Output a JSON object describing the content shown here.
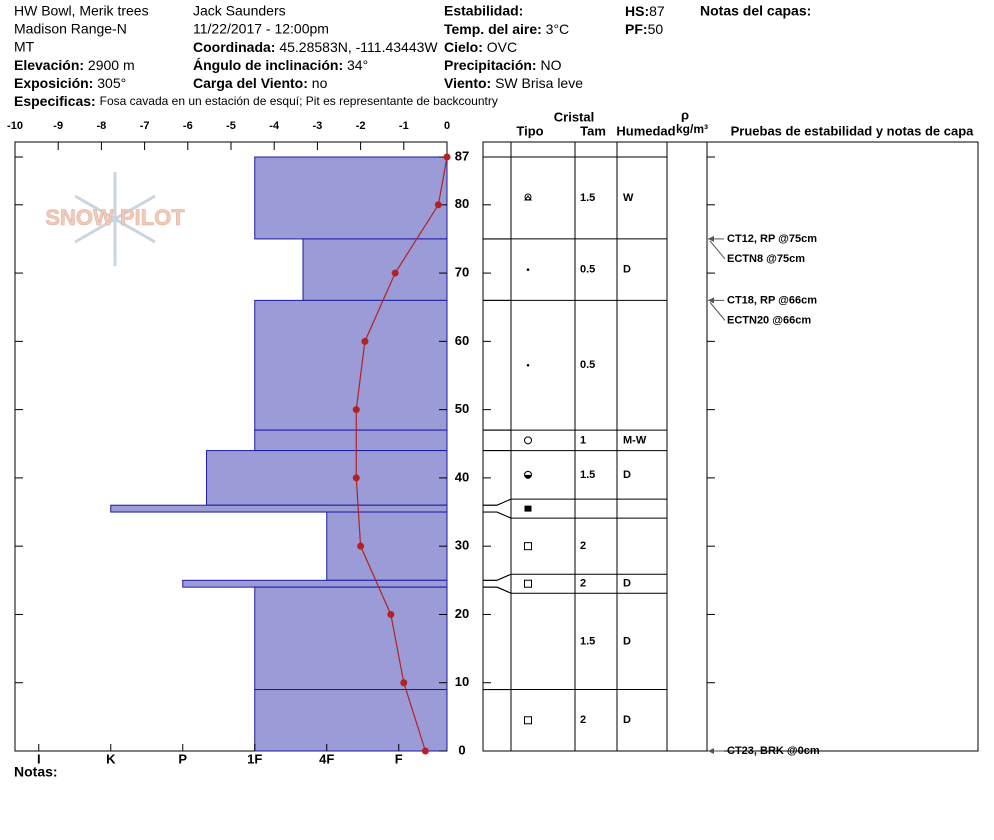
{
  "header": {
    "location": "HW Bowl, Merik trees",
    "range": "Madison Range-N",
    "state": "MT",
    "elevation_label": "Elevación:",
    "elevation": "2900 m",
    "aspect_label": "Exposición:",
    "aspect": "305°",
    "observer": "Jack Saunders",
    "datetime": "11/22/2017 - 12:00pm",
    "coords_label": "Coordinada:",
    "coords": "45.28583N, -111.43443W",
    "slope_label": "Ángulo de inclinación:",
    "slope": "34°",
    "wind_load_label": "Carga del Viento:",
    "wind_load": "no",
    "stability_label": "Estabilidad:",
    "air_temp_label": "Temp. del aire:",
    "air_temp": "3°C",
    "sky_label": "Cielo:",
    "sky": "OVC",
    "precip_label": "Precipitación:",
    "precip": "NO",
    "wind_label": "Viento:",
    "wind": "SW  Brisa leve",
    "hs_label": "HS:",
    "hs": 87,
    "pf_label": "PF:",
    "pf": 50,
    "layer_notes_label": "Notas del capas:",
    "specifics_label": "Especificas:",
    "specifics": "Fosa cavada en un estación de esquí; Pit es representante de backcountry",
    "notes_label": "Notas:",
    "logo": "SNOW PILOT"
  },
  "chart_data": {
    "type": "snowpit",
    "xlim": [
      -10,
      0
    ],
    "xticks": [
      -10,
      -9,
      -8,
      -7,
      -6,
      -5,
      -4,
      -3,
      -2,
      -1,
      0
    ],
    "ylim": [
      0,
      87
    ],
    "yticks": [
      0,
      10,
      20,
      30,
      40,
      50,
      60,
      70,
      80,
      87
    ],
    "hardness_lim": [
      6.33,
      0.33
    ],
    "hardness_ticks": [
      {
        "value": 6,
        "label": "I"
      },
      {
        "value": 5,
        "label": "K"
      },
      {
        "value": 4,
        "label": "P"
      },
      {
        "value": 3,
        "label": "1F"
      },
      {
        "value": 2,
        "label": "4F"
      },
      {
        "value": 1,
        "label": "F"
      }
    ],
    "bar_color": "#9b9bd8",
    "bar_edge": "#1a1aa0",
    "layers": [
      {
        "top": 87,
        "bottom": 75,
        "hardness": 3,
        "size": 1.5,
        "moisture": "W"
      },
      {
        "top": 75,
        "bottom": 66,
        "hardness": 2.33,
        "size": 0.5,
        "moisture": "D"
      },
      {
        "top": 66,
        "bottom": 47,
        "hardness": 3,
        "size": 0.5
      },
      {
        "top": 47,
        "bottom": 44,
        "hardness": 3,
        "size": 1,
        "moisture": "M-W"
      },
      {
        "top": 44,
        "bottom": 36,
        "hardness": 3.67,
        "size": 1.5,
        "moisture": "D"
      },
      {
        "top": 36,
        "bottom": 35,
        "hardness": 5
      },
      {
        "top": 35,
        "bottom": 25,
        "hardness": 2,
        "size": 2
      },
      {
        "top": 25,
        "bottom": 24,
        "hardness": 4,
        "size": 2,
        "moisture": "D"
      },
      {
        "top": 24,
        "bottom": 9,
        "hardness": 3,
        "size": 1.5,
        "moisture": "D"
      },
      {
        "top": 9,
        "bottom": 0,
        "hardness": 3,
        "size": 2,
        "moisture": "D"
      }
    ],
    "temperature": {
      "color": "#b22222",
      "heights": [
        87,
        80,
        70,
        60,
        50,
        40,
        30,
        20,
        10,
        0
      ],
      "values": [
        0,
        -0.2,
        -1.2,
        -1.9,
        -2.1,
        -2.1,
        -2.0,
        -1.3,
        -1.0,
        -0.5
      ]
    },
    "columns": {
      "crystal": "Cristal",
      "type": "Tipo",
      "size": "Tam",
      "moisture": "Humedad",
      "rho": "ρ",
      "density": "kg/m³",
      "tests": "Pruebas de estabilidad y notas de capa"
    },
    "tests": [
      {
        "text": "CT12, RP @75cm",
        "height": 75
      },
      {
        "text": "ECTN8 @75cm",
        "height": 75
      },
      {
        "text": "CT18, RP @66cm",
        "height": 66
      },
      {
        "text": "ECTN20 @66cm",
        "height": 66
      },
      {
        "text": "CT23, BRK @0cm",
        "height": 0
      }
    ]
  }
}
